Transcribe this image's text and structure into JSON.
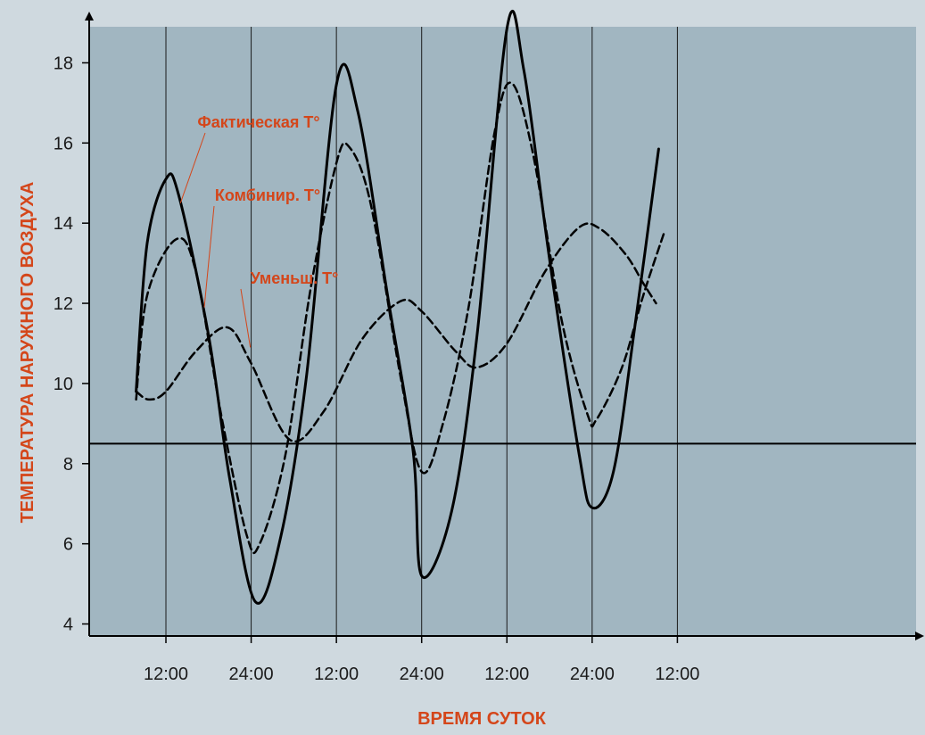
{
  "chart_data": {
    "type": "line",
    "xlabel": "ВРЕМЯ СУТОК",
    "ylabel": "ТЕМПЕРАТУРА  НАРУЖНОГО  ВОЗДУХА",
    "ylim": [
      3.7,
      18.9
    ],
    "xlim": [
      -0.9,
      8.8
    ],
    "x_ticks": [
      0,
      1,
      2,
      3,
      4,
      5,
      6
    ],
    "x_tick_labels": [
      "12:00",
      "24:00",
      "12:00",
      "24:00",
      "12:00",
      "24:00",
      "12:00"
    ],
    "y_ticks": [
      4,
      6,
      8,
      10,
      12,
      14,
      16,
      18
    ],
    "y_tick_labels": [
      "4",
      "6",
      "8",
      "10",
      "12",
      "14",
      "16",
      "18"
    ],
    "reference_line_y": 8.5,
    "grid": "vertical",
    "colors": {
      "plot_background": "#a1b6c1",
      "page_background": "#cfd9df",
      "line": "#000000",
      "label": "#d4461a",
      "grid": "#1a1a1a"
    },
    "annotations": [
      {
        "text": "Фактическая T°",
        "series": 0,
        "x": 0.17,
        "y": 14.5
      },
      {
        "text": "Комбинир. T°",
        "series": 1,
        "x": 0.45,
        "y": 11.9
      },
      {
        "text": "Уменьш. T°",
        "series": 2,
        "x": 0.99,
        "y": 10.9
      }
    ],
    "series": [
      {
        "style": "solid",
        "points": [
          [
            -0.35,
            9.8
          ],
          [
            -0.22,
            13.5
          ],
          [
            0,
            15.1
          ],
          [
            0.15,
            14.7
          ],
          [
            0.5,
            11.2
          ],
          [
            0.75,
            7.6
          ],
          [
            1.05,
            4.55
          ],
          [
            1.35,
            6.2
          ],
          [
            1.65,
            10.2
          ],
          [
            2.0,
            17.45
          ],
          [
            2.25,
            16.8
          ],
          [
            2.6,
            12.2
          ],
          [
            2.9,
            8.3
          ],
          [
            3.0,
            5.2
          ],
          [
            3.35,
            6.8
          ],
          [
            3.65,
            11.2
          ],
          [
            4.0,
            18.85
          ],
          [
            4.2,
            17.8
          ],
          [
            4.5,
            13.1
          ],
          [
            4.85,
            8.2
          ],
          [
            5.0,
            6.9
          ],
          [
            5.25,
            7.8
          ],
          [
            5.5,
            11.4
          ],
          [
            5.78,
            15.85
          ]
        ]
      },
      {
        "style": "dashed",
        "points": [
          [
            -0.35,
            9.6
          ],
          [
            -0.22,
            12.2
          ],
          [
            0.12,
            13.6
          ],
          [
            0.35,
            12.8
          ],
          [
            0.65,
            9.2
          ],
          [
            0.95,
            6.2
          ],
          [
            1.1,
            6.0
          ],
          [
            1.4,
            8.2
          ],
          [
            1.7,
            12.4
          ],
          [
            2.0,
            15.5
          ],
          [
            2.15,
            15.9
          ],
          [
            2.4,
            14.5
          ],
          [
            2.75,
            10.2
          ],
          [
            3.0,
            7.8
          ],
          [
            3.25,
            9.0
          ],
          [
            3.55,
            11.9
          ],
          [
            3.85,
            16.2
          ],
          [
            4.05,
            17.5
          ],
          [
            4.3,
            15.8
          ],
          [
            4.65,
            11.5
          ],
          [
            4.95,
            9.2
          ],
          [
            5.05,
            9.1
          ],
          [
            5.35,
            10.4
          ],
          [
            5.6,
            12.2
          ],
          [
            5.85,
            13.8
          ]
        ]
      },
      {
        "style": "dashed",
        "points": [
          [
            -0.35,
            9.8
          ],
          [
            -0.2,
            9.6
          ],
          [
            0,
            9.8
          ],
          [
            0.35,
            10.8
          ],
          [
            0.72,
            11.4
          ],
          [
            1.0,
            10.5
          ],
          [
            1.45,
            8.6
          ],
          [
            1.85,
            9.3
          ],
          [
            2.3,
            11.1
          ],
          [
            2.75,
            12.05
          ],
          [
            3.0,
            11.8
          ],
          [
            3.4,
            10.8
          ],
          [
            3.65,
            10.4
          ],
          [
            4.0,
            11.0
          ],
          [
            4.45,
            12.8
          ],
          [
            4.85,
            13.9
          ],
          [
            5.1,
            13.85
          ],
          [
            5.4,
            13.2
          ],
          [
            5.6,
            12.5
          ],
          [
            5.75,
            12.0
          ]
        ]
      }
    ]
  }
}
